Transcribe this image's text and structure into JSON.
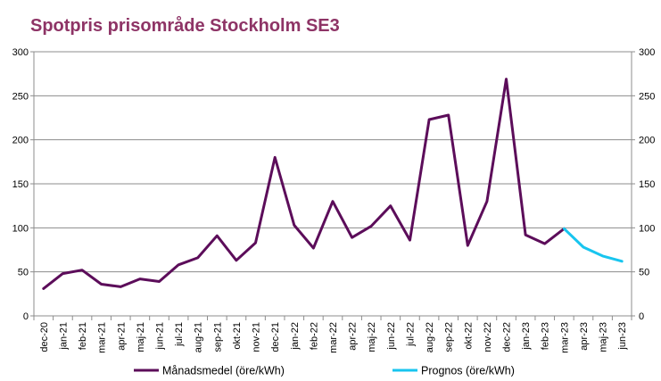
{
  "chart_data": {
    "type": "line",
    "title": "Spotpris prisområde Stockholm SE3",
    "xlabel": "",
    "ylabel": "",
    "ylim": [
      0,
      300
    ],
    "yticks": [
      0,
      50,
      100,
      150,
      200,
      250,
      300
    ],
    "y_axes": "left-and-right",
    "grid": "horizontal",
    "legend_position": "bottom",
    "categories": [
      "dec-20",
      "jan-21",
      "feb-21",
      "mar-21",
      "apr-21",
      "maj-21",
      "jun-21",
      "jul-21",
      "aug-21",
      "sep-21",
      "okt-21",
      "nov-21",
      "dec-21",
      "jan-22",
      "feb-22",
      "mar-22",
      "apr-22",
      "maj-22",
      "jun-22",
      "jul-22",
      "aug-22",
      "sep-22",
      "okt-22",
      "nov-22",
      "dec-22",
      "jan-23",
      "feb-23",
      "mar-23",
      "apr-23",
      "maj-23",
      "jun-23"
    ],
    "series": [
      {
        "name": "Månadsmedel (öre/kWh)",
        "color": "#5c0d5a",
        "values": [
          31,
          48,
          52,
          36,
          33,
          42,
          39,
          58,
          66,
          91,
          63,
          83,
          180,
          103,
          77,
          130,
          89,
          102,
          125,
          86,
          223,
          228,
          80,
          130,
          269,
          92,
          82,
          99,
          null,
          null,
          null
        ]
      },
      {
        "name": "Prognos (öre/kWh)",
        "color": "#18c5ef",
        "values": [
          null,
          null,
          null,
          null,
          null,
          null,
          null,
          null,
          null,
          null,
          null,
          null,
          null,
          null,
          null,
          null,
          null,
          null,
          null,
          null,
          null,
          null,
          null,
          null,
          null,
          null,
          null,
          99,
          78,
          68,
          62
        ]
      }
    ]
  }
}
